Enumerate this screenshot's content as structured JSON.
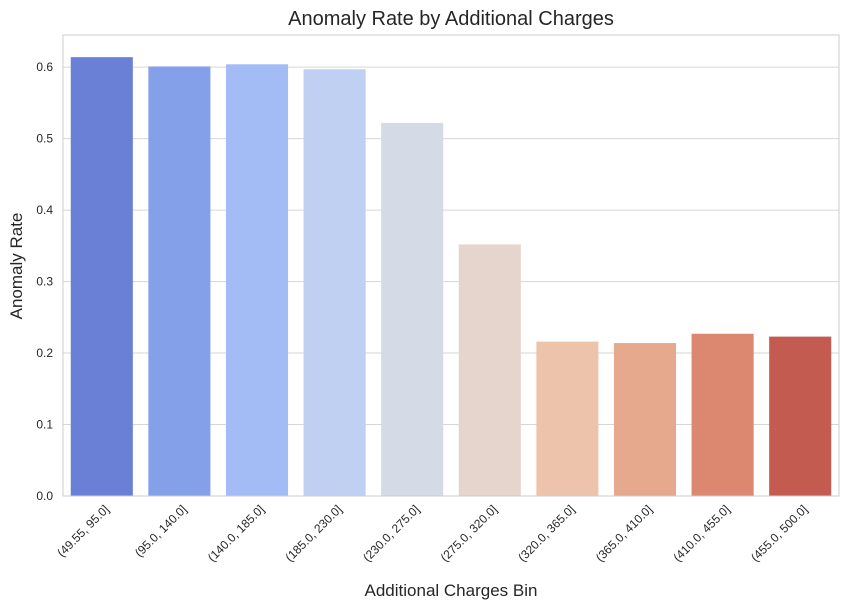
{
  "chart_data": {
    "type": "bar",
    "title": "Anomaly Rate by Additional Charges",
    "xlabel": "Additional Charges Bin",
    "ylabel": "Anomaly Rate",
    "categories": [
      "(49.55, 95.0]",
      "(95.0, 140.0]",
      "(140.0, 185.0]",
      "(185.0, 230.0]",
      "(230.0, 275.0]",
      "(275.0, 320.0]",
      "(320.0, 365.0]",
      "(365.0, 410.0]",
      "(410.0, 455.0]",
      "(455.0, 500.0]"
    ],
    "values": [
      0.614,
      0.601,
      0.604,
      0.597,
      0.522,
      0.352,
      0.216,
      0.214,
      0.227,
      0.223
    ],
    "ylim": [
      0,
      0.645
    ],
    "yticks": [
      0.0,
      0.1,
      0.2,
      0.3,
      0.4,
      0.5,
      0.6
    ],
    "colors": [
      "#6a7fd6",
      "#84a0e8",
      "#a3bcf5",
      "#bfd0f2",
      "#d5dbe6",
      "#e5d5cc",
      "#eec3ab",
      "#e7a98d",
      "#dc8870",
      "#c45b50"
    ],
    "grid": "horizontal",
    "legend": "none"
  }
}
